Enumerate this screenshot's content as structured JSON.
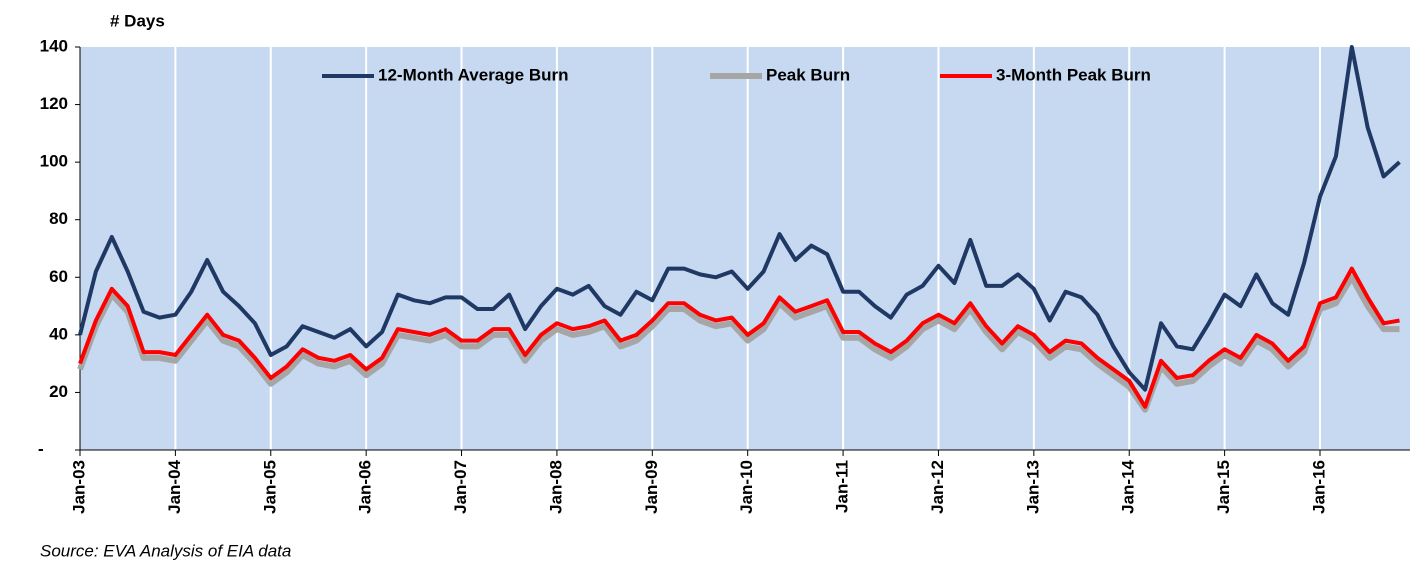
{
  "chart_data": {
    "type": "line",
    "title": "# Days",
    "source": "Source:  EVA Analysis of EIA data",
    "categories": [
      "Jan-03",
      null,
      null,
      null,
      null,
      null,
      "Jan-04",
      null,
      null,
      null,
      null,
      null,
      "Jan-05",
      null,
      null,
      null,
      null,
      null,
      "Jan-06",
      null,
      null,
      null,
      null,
      null,
      "Jan-07",
      null,
      null,
      null,
      null,
      null,
      "Jan-08",
      null,
      null,
      null,
      null,
      null,
      "Jan-09",
      null,
      null,
      null,
      null,
      null,
      "Jan-10",
      null,
      null,
      null,
      null,
      null,
      "Jan-11",
      null,
      null,
      null,
      null,
      null,
      "Jan-12",
      null,
      null,
      null,
      null,
      null,
      "Jan-13",
      null,
      null,
      null,
      null,
      null,
      "Jan-14",
      null,
      null,
      null,
      null,
      null,
      "Jan-15",
      null,
      null,
      null,
      null,
      null,
      "Jan-16",
      null,
      null,
      null,
      null,
      null
    ],
    "series": [
      {
        "name": "12-Month Average Burn",
        "color": "#1f3864",
        "width": 4,
        "values": [
          40,
          62,
          74,
          62,
          48,
          46,
          47,
          55,
          66,
          55,
          50,
          44,
          33,
          36,
          43,
          41,
          39,
          42,
          36,
          41,
          54,
          52,
          51,
          53,
          53,
          49,
          49,
          54,
          42,
          50,
          56,
          54,
          57,
          50,
          47,
          55,
          52,
          63,
          63,
          61,
          60,
          62,
          56,
          62,
          75,
          66,
          71,
          68,
          55,
          55,
          50,
          46,
          54,
          57,
          64,
          58,
          73,
          57,
          57,
          61,
          56,
          45,
          55,
          53,
          47,
          36,
          27,
          21,
          44,
          36,
          35,
          44,
          54,
          50,
          61,
          51,
          47,
          65,
          88,
          102,
          140,
          112,
          95,
          100
        ]
      },
      {
        "name": "Peak Burn",
        "color": "#a6a6a6",
        "width": 6,
        "values": [
          28,
          43,
          54,
          48,
          32,
          32,
          31,
          38,
          45,
          38,
          36,
          30,
          23,
          27,
          33,
          30,
          29,
          31,
          26,
          30,
          40,
          39,
          38,
          40,
          36,
          36,
          40,
          40,
          31,
          38,
          42,
          40,
          41,
          43,
          36,
          38,
          43,
          49,
          49,
          45,
          43,
          44,
          38,
          42,
          51,
          46,
          48,
          50,
          39,
          39,
          35,
          32,
          36,
          42,
          45,
          42,
          49,
          41,
          35,
          41,
          38,
          32,
          36,
          35,
          30,
          26,
          22,
          14,
          29,
          23,
          24,
          29,
          33,
          30,
          38,
          35,
          29,
          34,
          49,
          51,
          60,
          50,
          42,
          42
        ]
      },
      {
        "name": "3-Month Peak Burn",
        "color": "#ff0000",
        "width": 4,
        "values": [
          30,
          45,
          56,
          50,
          34,
          34,
          33,
          40,
          47,
          40,
          38,
          32,
          25,
          29,
          35,
          32,
          31,
          33,
          28,
          32,
          42,
          41,
          40,
          42,
          38,
          38,
          42,
          42,
          33,
          40,
          44,
          42,
          43,
          45,
          38,
          40,
          45,
          51,
          51,
          47,
          45,
          46,
          40,
          44,
          53,
          48,
          50,
          52,
          41,
          41,
          37,
          34,
          38,
          44,
          47,
          44,
          51,
          43,
          37,
          43,
          40,
          34,
          38,
          37,
          32,
          28,
          24,
          15,
          31,
          25,
          26,
          31,
          35,
          32,
          40,
          37,
          31,
          36,
          51,
          53,
          63,
          53,
          44,
          45
        ]
      }
    ],
    "ylim": [
      0,
      140
    ],
    "yticks": [
      {
        "value": 0,
        "label": "-"
      },
      20,
      40,
      60,
      80,
      100,
      120,
      140
    ],
    "plot_background": "#c6d9f1"
  }
}
